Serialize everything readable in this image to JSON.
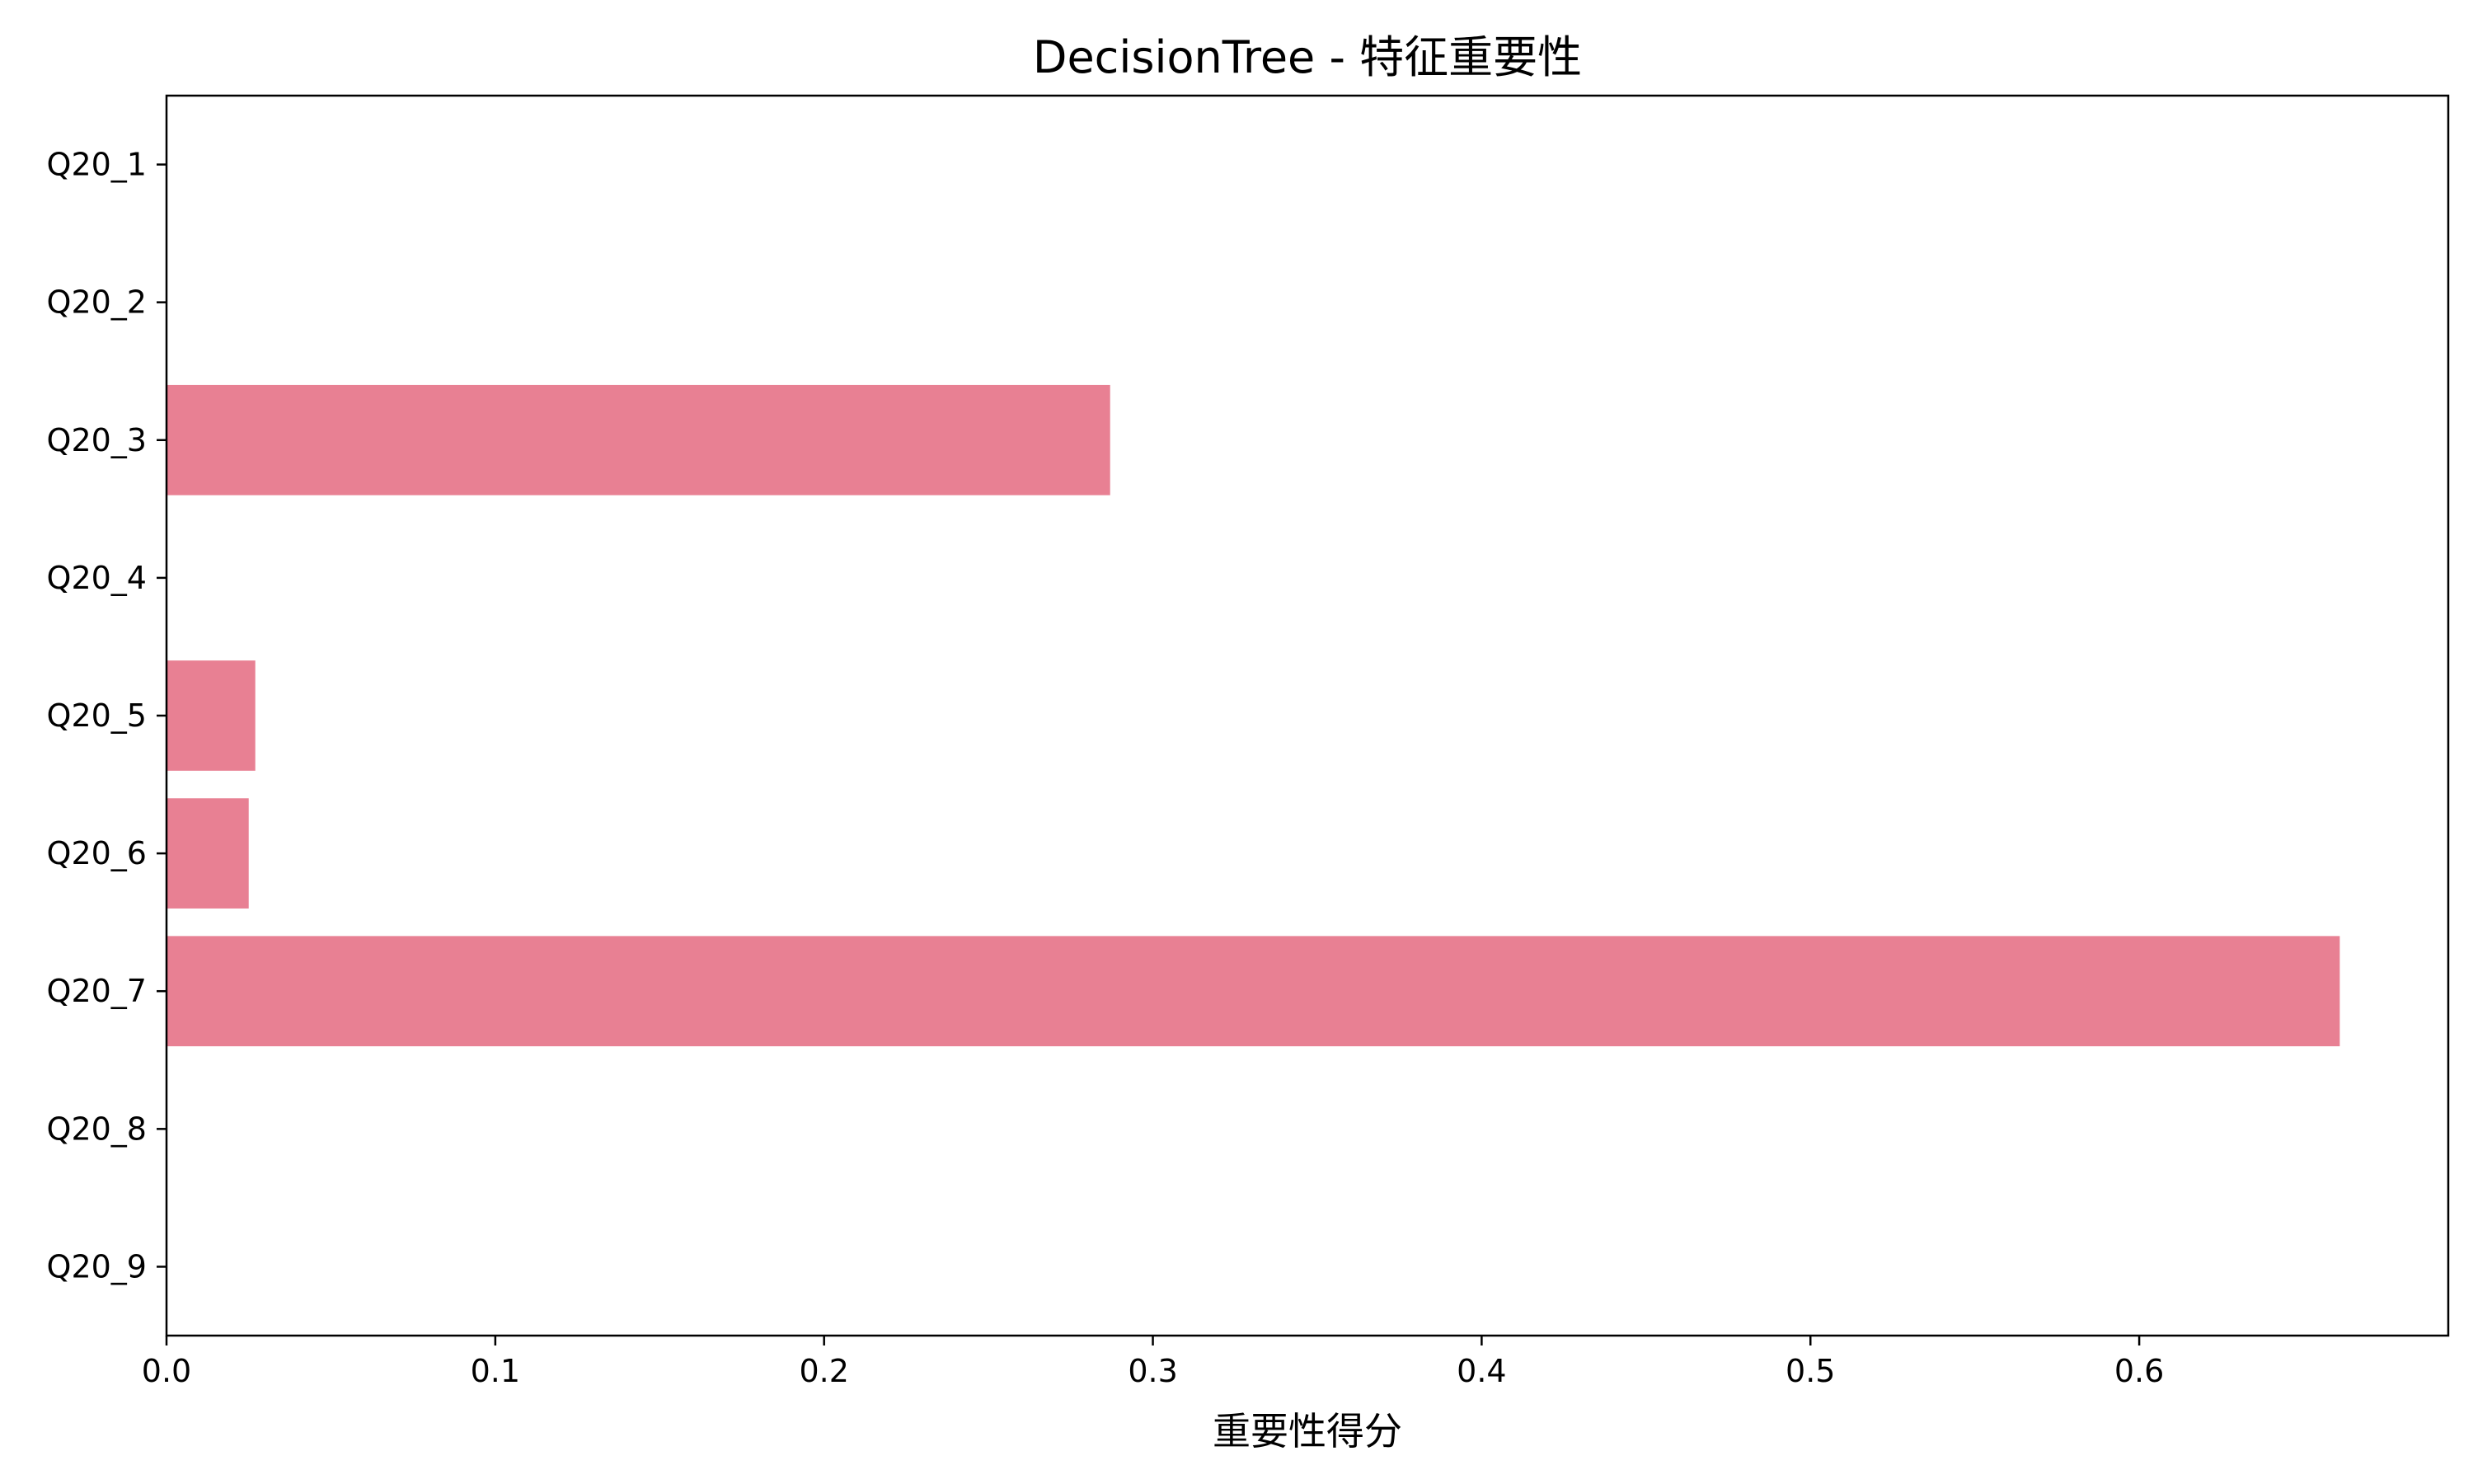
{
  "chart_data": {
    "type": "bar",
    "orientation": "horizontal",
    "title": "DecisionTree - 特征重要性",
    "xlabel": "重要性得分",
    "ylabel": "",
    "categories": [
      "Q20_1",
      "Q20_2",
      "Q20_3",
      "Q20_4",
      "Q20_5",
      "Q20_6",
      "Q20_7",
      "Q20_8",
      "Q20_9"
    ],
    "values": [
      0,
      0,
      0.287,
      0,
      0.027,
      0.025,
      0.661,
      0,
      0
    ],
    "xlim": [
      0,
      0.694
    ],
    "xticks": [
      0.0,
      0.1,
      0.2,
      0.3,
      0.4,
      0.5,
      0.6
    ],
    "xtick_labels": [
      "0.0",
      "0.1",
      "0.2",
      "0.3",
      "0.4",
      "0.5",
      "0.6"
    ],
    "grid": false,
    "bar_color": "#e88093"
  }
}
